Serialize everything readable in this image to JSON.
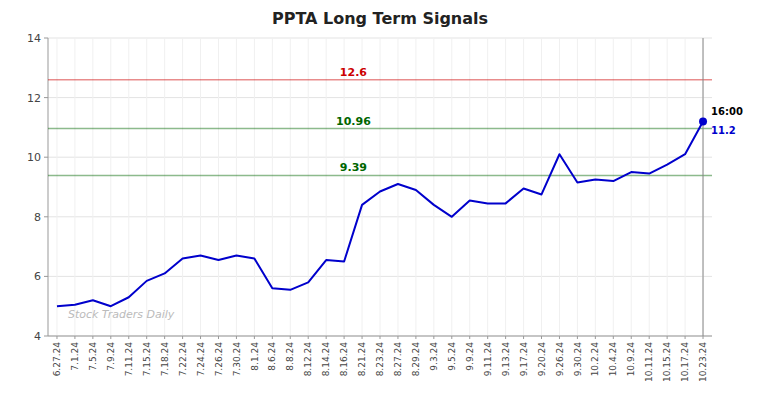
{
  "chart_data": {
    "type": "line",
    "title": "PPTA Long Term Signals",
    "categories": [
      "6.27.24",
      "7.1.24",
      "7.5.24",
      "7.9.24",
      "7.11.24",
      "7.15.24",
      "7.18.24",
      "7.22.24",
      "7.24.24",
      "7.26.24",
      "7.30.24",
      "8.1.24",
      "8.6.24",
      "8.8.24",
      "8.12.24",
      "8.14.24",
      "8.16.24",
      "8.21.24",
      "8.23.24",
      "8.27.24",
      "8.29.24",
      "9.3.24",
      "9.5.24",
      "9.9.24",
      "9.11.24",
      "9.13.24",
      "9.17.24",
      "9.20.24",
      "9.26.24",
      "9.30.24",
      "10.2.24",
      "10.4.24",
      "10.9.24",
      "10.11.24",
      "10.15.24",
      "10.17.24",
      "10.23.24"
    ],
    "values": [
      5.0,
      5.05,
      5.2,
      5.0,
      5.3,
      5.85,
      6.1,
      6.6,
      6.7,
      6.55,
      6.7,
      6.6,
      5.6,
      5.55,
      5.8,
      6.55,
      6.5,
      8.4,
      8.85,
      9.1,
      8.9,
      8.4,
      8.0,
      8.55,
      8.45,
      8.45,
      8.95,
      8.75,
      10.1,
      9.15,
      9.25,
      9.2,
      9.5,
      9.45,
      9.75,
      10.1,
      11.2
    ],
    "color": "#0000cc",
    "ylim": [
      4,
      14
    ],
    "yticks": [
      4,
      6,
      8,
      10,
      12,
      14
    ],
    "grid": true,
    "reference_lines": [
      {
        "y": 12.6,
        "label": "12.6",
        "color": "#cc0000"
      },
      {
        "y": 10.96,
        "label": "10.96",
        "color": "#006600"
      },
      {
        "y": 9.39,
        "label": "9.39",
        "color": "#006600"
      }
    ],
    "last_label": "16:00",
    "watermark": "Stock Traders Daily"
  }
}
